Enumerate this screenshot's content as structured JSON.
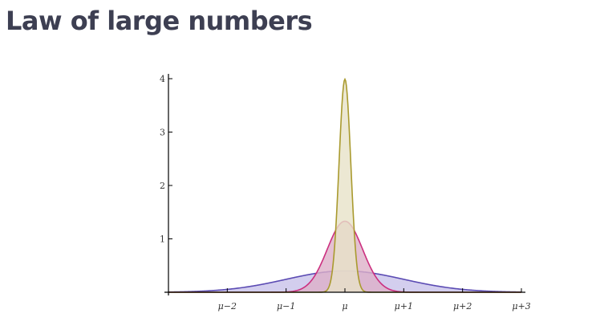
{
  "page": {
    "title": "Law of large numbers"
  },
  "chart_data": {
    "type": "area",
    "title": "",
    "xlabel": "",
    "ylabel": "",
    "xlim": [
      -3,
      3
    ],
    "ylim": [
      0,
      4
    ],
    "grid": false,
    "legend": "none",
    "x_ticks": [
      {
        "value": -2,
        "label": "μ−2"
      },
      {
        "value": -1,
        "label": "μ−1"
      },
      {
        "value": 0,
        "label": "μ"
      },
      {
        "value": 1,
        "label": "μ+1"
      },
      {
        "value": 2,
        "label": "μ+2"
      },
      {
        "value": 3,
        "label": "μ+3"
      }
    ],
    "y_ticks": [
      {
        "value": 1,
        "label": "1"
      },
      {
        "value": 2,
        "label": "2"
      },
      {
        "value": 3,
        "label": "3"
      },
      {
        "value": 4,
        "label": "4"
      }
    ],
    "series": [
      {
        "sigma": 1.0,
        "peak": 0.4,
        "fill": "#c8c2ea",
        "stroke": "#5b4bb3"
      },
      {
        "sigma": 0.3,
        "peak": 1.33,
        "fill": "#ddb0c8",
        "stroke": "#cc2f7f"
      },
      {
        "sigma": 0.1,
        "peak": 3.99,
        "fill": "#e7e2c8",
        "stroke": "#a99a2e"
      }
    ]
  }
}
